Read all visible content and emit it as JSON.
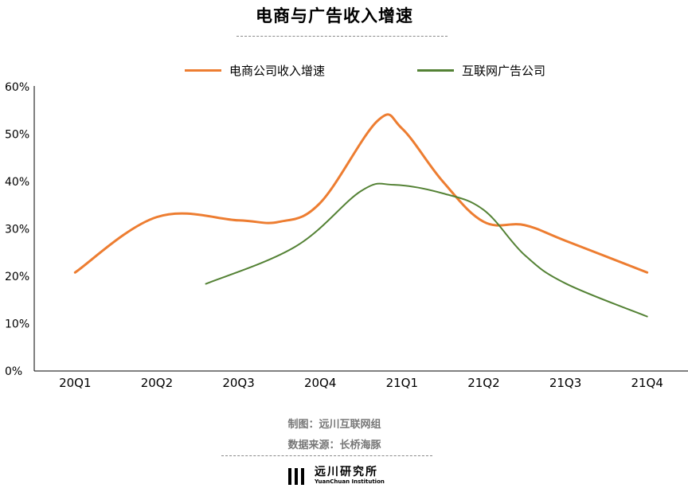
{
  "chart_data": {
    "type": "line",
    "title": "电商与广告收入增速",
    "categories": [
      "20Q1",
      "20Q2",
      "20Q3",
      "20Q4",
      "21Q1",
      "21Q2",
      "21Q3",
      "21Q4"
    ],
    "y_ticks": [
      "0%",
      "10%",
      "20%",
      "30%",
      "40%",
      "50%",
      "60%"
    ],
    "ylim": [
      0,
      60
    ],
    "grid": false,
    "legend_position": "top",
    "series": [
      {
        "name": "电商公司收入增速",
        "color": "#ED7D31",
        "smooth": true,
        "points": [
          [
            0,
            20.8
          ],
          [
            1,
            32.5
          ],
          [
            2,
            31.8
          ],
          [
            2.5,
            31.5
          ],
          [
            3,
            35.5
          ],
          [
            3.7,
            52.8
          ],
          [
            4,
            51.2
          ],
          [
            4.5,
            40
          ],
          [
            5,
            31.5
          ],
          [
            5.5,
            30.8
          ],
          [
            6,
            27.5
          ],
          [
            7,
            20.8
          ]
        ]
      },
      {
        "name": "互联网广告公司",
        "color": "#548235",
        "smooth": true,
        "points": [
          [
            1.6,
            18.4
          ],
          [
            2.7,
            26.3
          ],
          [
            3.5,
            38
          ],
          [
            3.9,
            39.3
          ],
          [
            4.5,
            37.5
          ],
          [
            5,
            34
          ],
          [
            5.5,
            24.5
          ],
          [
            6,
            18.5
          ],
          [
            7,
            11.5
          ]
        ]
      }
    ]
  },
  "footer": {
    "maker": "制图：远川互联网组",
    "source": "数据来源：长桥海豚"
  },
  "logo": {
    "name_cn": "远川研究所",
    "name_en": "YuanChuan Institution"
  }
}
